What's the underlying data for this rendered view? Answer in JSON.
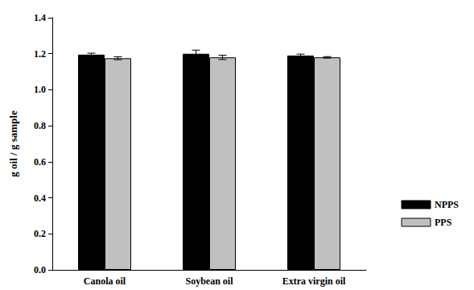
{
  "chart_data": {
    "type": "bar",
    "categories": [
      "Canola oil",
      "Soybean oil",
      "Extra virgin oil"
    ],
    "series": [
      {
        "name": "NPPS",
        "color": "#000000",
        "values": [
          1.195,
          1.2,
          1.19
        ],
        "errors": [
          0.008,
          0.02,
          0.008
        ]
      },
      {
        "name": "PPS",
        "color": "#c0c0c0",
        "values": [
          1.175,
          1.18,
          1.18
        ],
        "errors": [
          0.008,
          0.012,
          0.004
        ]
      }
    ],
    "y_label": "g oil / g sample",
    "ylim": [
      0,
      1.4
    ],
    "yticks": [
      {
        "value": 0,
        "label": "0.0"
      },
      0.2,
      0.4,
      0.6,
      0.8,
      {
        "value": 1,
        "label": "1.0"
      },
      1.2,
      1.4
    ],
    "grid": false,
    "legend": "right"
  }
}
